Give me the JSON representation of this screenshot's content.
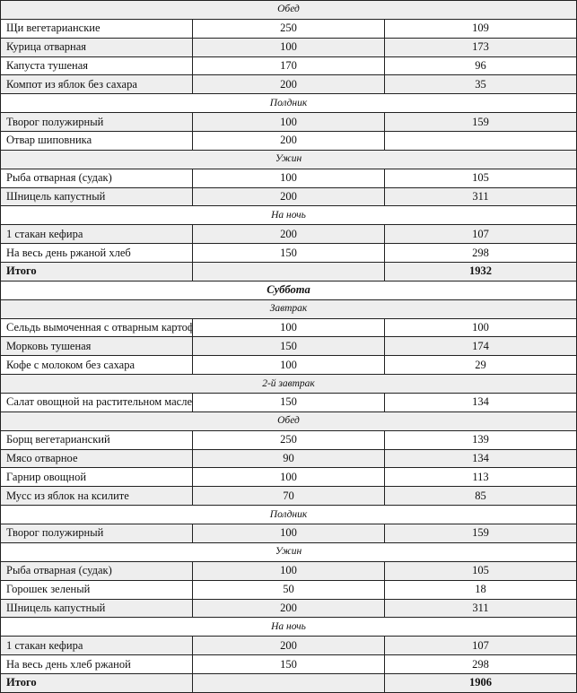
{
  "rows": [
    {
      "type": "section",
      "label": "Обед"
    },
    {
      "type": "item",
      "name": "Щи вегетарианские",
      "weight": "250",
      "kcal": "109"
    },
    {
      "type": "item",
      "name": "Курица отварная",
      "weight": "100",
      "kcal": "173"
    },
    {
      "type": "item",
      "name": "Капуста тушеная",
      "weight": "170",
      "kcal": "96"
    },
    {
      "type": "item",
      "name": "Компот из яблок без сахара",
      "weight": "200",
      "kcal": "35"
    },
    {
      "type": "section",
      "label": "Полдник"
    },
    {
      "type": "item",
      "name": "Творог полужирный",
      "weight": "100",
      "kcal": "159"
    },
    {
      "type": "item",
      "name": "Отвар шиповника",
      "weight": "200",
      "kcal": ""
    },
    {
      "type": "section",
      "label": "Ужин"
    },
    {
      "type": "item",
      "name": "Рыба отварная (судак)",
      "weight": "100",
      "kcal": "105"
    },
    {
      "type": "item",
      "name": "Шницель капустный",
      "weight": "200",
      "kcal": "311"
    },
    {
      "type": "section",
      "label": "На ночь"
    },
    {
      "type": "item",
      "name": "1 стакан кефира",
      "weight": "200",
      "kcal": "107"
    },
    {
      "type": "item",
      "name": "На весь день ржаной хлеб",
      "weight": "150",
      "kcal": "298"
    },
    {
      "type": "total",
      "name": "Итого",
      "weight": "",
      "kcal": "1932"
    },
    {
      "type": "day",
      "label": "Суббота"
    },
    {
      "type": "section",
      "label": "Завтрак"
    },
    {
      "type": "item",
      "name": "Сельдь вымоченная с отварным картофелем",
      "weight": "100",
      "kcal": "100"
    },
    {
      "type": "item",
      "name": "Морковь тушеная",
      "weight": "150",
      "kcal": "174"
    },
    {
      "type": "item",
      "name": "Кофе с молоком без сахара",
      "weight": "100",
      "kcal": "29"
    },
    {
      "type": "section",
      "label": "2-й завтрак"
    },
    {
      "type": "item",
      "name": "Салат овощной на растительном масле",
      "weight": "150",
      "kcal": "134"
    },
    {
      "type": "section",
      "label": "Обед"
    },
    {
      "type": "item",
      "name": "Борщ вегетарианский",
      "weight": "250",
      "kcal": "139"
    },
    {
      "type": "item",
      "name": "Мясо отварное",
      "weight": "90",
      "kcal": "134"
    },
    {
      "type": "item",
      "name": "Гарнир овощной",
      "weight": "100",
      "kcal": "113"
    },
    {
      "type": "item",
      "name": "Мусс из яблок на ксилите",
      "weight": "70",
      "kcal": "85"
    },
    {
      "type": "section",
      "label": "Полдник"
    },
    {
      "type": "item",
      "name": "Творог полужирный",
      "weight": "100",
      "kcal": "159"
    },
    {
      "type": "section",
      "label": "Ужин"
    },
    {
      "type": "item",
      "name": "Рыба отварная (судак)",
      "weight": "100",
      "kcal": "105"
    },
    {
      "type": "item",
      "name": "Горошек зеленый",
      "weight": "50",
      "kcal": "18"
    },
    {
      "type": "item",
      "name": "Шницель капустный",
      "weight": "200",
      "kcal": "311"
    },
    {
      "type": "section",
      "label": "На ночь"
    },
    {
      "type": "item",
      "name": "1 стакан кефира",
      "weight": "200",
      "kcal": "107"
    },
    {
      "type": "item",
      "name": "На весь день хлеб ржаной",
      "weight": "150",
      "kcal": "298"
    },
    {
      "type": "total",
      "name": "Итого",
      "weight": "",
      "kcal": "1906"
    }
  ]
}
